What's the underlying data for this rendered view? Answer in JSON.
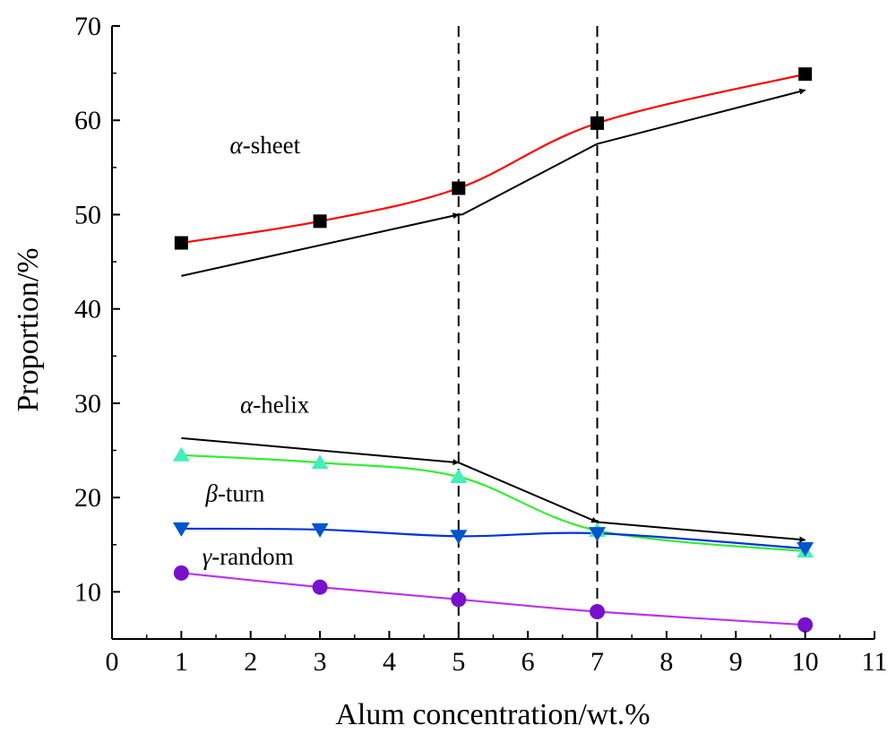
{
  "chart_data": {
    "type": "line",
    "title": "",
    "xlabel": "Alum concentration/wt.%",
    "ylabel": "Proportion/%",
    "xlim": [
      0,
      11
    ],
    "ylim": [
      5,
      70
    ],
    "xticks": [
      0,
      1,
      2,
      3,
      4,
      5,
      6,
      7,
      8,
      9,
      10,
      11
    ],
    "yticks": [
      10,
      20,
      30,
      40,
      50,
      60,
      70
    ],
    "x": [
      1,
      3,
      5,
      7,
      10
    ],
    "grid": false,
    "legend": "none",
    "reference_lines": [
      5,
      7
    ],
    "series": [
      {
        "key": "sheet",
        "values": [
          47.0,
          49.3,
          52.8,
          59.7,
          64.9
        ],
        "color": "#ff0000",
        "marker": "square",
        "marker_color": "#000000"
      },
      {
        "key": "helix",
        "values": [
          24.5,
          23.7,
          22.2,
          16.5,
          14.3
        ],
        "color": "#33ee33",
        "marker": "triangle-up",
        "marker_color": "#44eebb"
      },
      {
        "key": "turn",
        "values": [
          16.7,
          16.6,
          15.9,
          16.2,
          14.6
        ],
        "color": "#0033dd",
        "marker": "triangle-down",
        "marker_color": "#0055cc"
      },
      {
        "key": "random",
        "values": [
          12.0,
          10.5,
          9.2,
          7.9,
          6.5
        ],
        "color": "#bb33ee",
        "marker": "circle",
        "marker_color": "#7711cc"
      }
    ],
    "arrows": [
      {
        "key": "sheet-trend",
        "points": [
          [
            1,
            43.5
          ],
          [
            5,
            50.0
          ],
          [
            5.05,
            50.0
          ],
          [
            7,
            57.5
          ],
          [
            10,
            63.2
          ]
        ],
        "heads_at": [
          1,
          4
        ]
      },
      {
        "key": "helix-trend",
        "points": [
          [
            1,
            26.3
          ],
          [
            5,
            23.7
          ],
          [
            7,
            17.4
          ],
          [
            10,
            15.5
          ]
        ],
        "heads_at": [
          1,
          2,
          3
        ]
      }
    ],
    "annotations": [
      {
        "key": "sheet",
        "greek": "α",
        "text": "-sheet",
        "x": 1.7,
        "y": 56.5
      },
      {
        "key": "helix",
        "greek": "α",
        "text": "-helix",
        "x": 1.85,
        "y": 29.0
      },
      {
        "key": "turn",
        "greek": "β",
        "text": "-turn",
        "x": 1.35,
        "y": 19.6
      },
      {
        "key": "random",
        "greek": "γ",
        "text": "-random",
        "x": 1.3,
        "y": 12.9
      }
    ]
  }
}
